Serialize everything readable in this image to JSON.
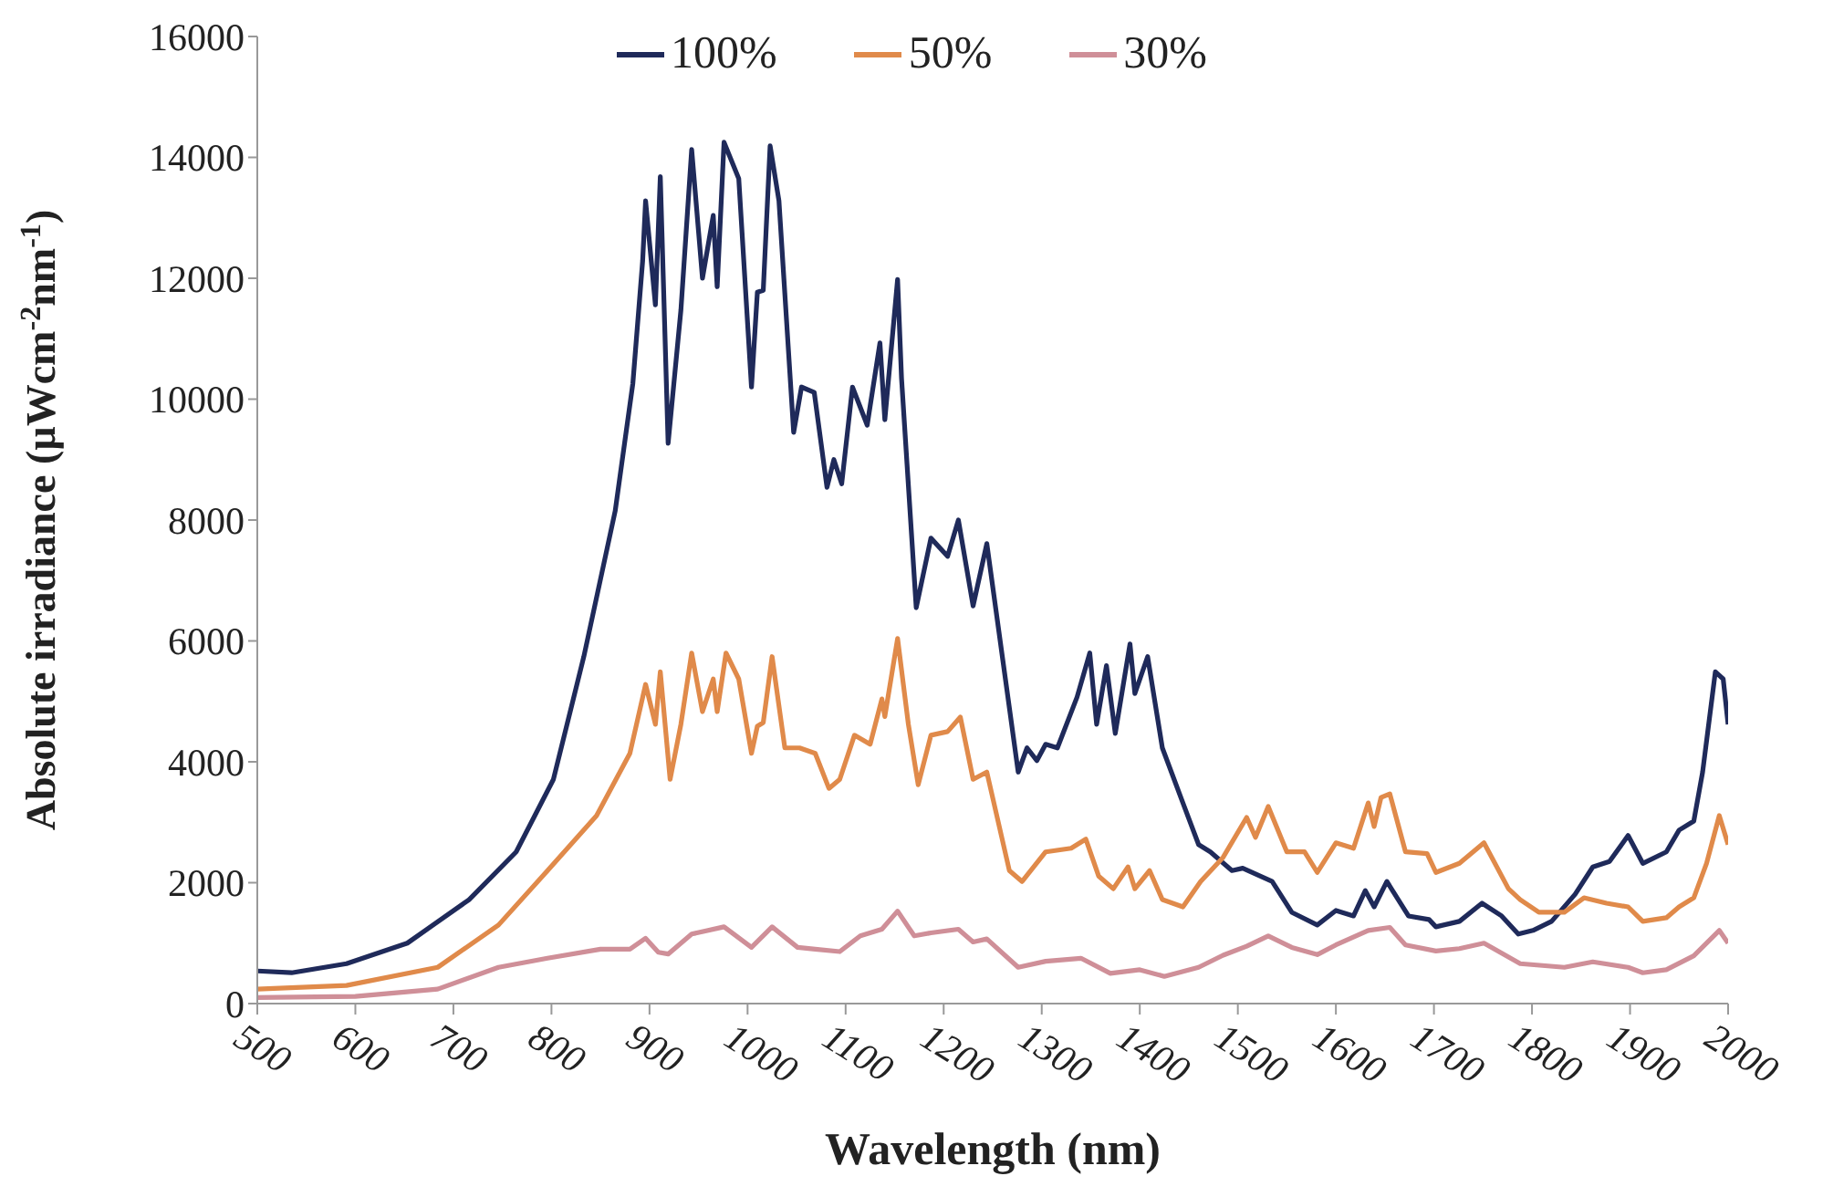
{
  "chart_data": {
    "type": "line",
    "xlabel": "Wavelength (nm)",
    "ylabel": "Absolute irradiance (µWcm$^{-2}$nm$^{-1}$)",
    "xlim": [
      500,
      2000
    ],
    "xticks": [
      500,
      600,
      700,
      800,
      900,
      1000,
      1100,
      1200,
      1300,
      1400,
      1500,
      1600,
      1700,
      1800,
      1900,
      2000
    ],
    "ylim": [
      0,
      16000
    ],
    "yticks": [
      0,
      2000,
      4000,
      6000,
      8000,
      10000,
      12000,
      14000,
      16000
    ],
    "grid": false,
    "legend": "top",
    "marker": "none",
    "line_style": "solid",
    "series": [
      {
        "name": "100%",
        "color": "#1f2a5a",
        "x": [
          500,
          535,
          591,
          653,
          716,
          764,
          802,
          833,
          865,
          883,
          893,
          896,
          906,
          911,
          919,
          932,
          943,
          954,
          965,
          969,
          976,
          991,
          1004,
          1010,
          1016,
          1023,
          1032,
          1047,
          1055,
          1068,
          1081,
          1088,
          1096,
          1107,
          1122,
          1135,
          1140,
          1153,
          1157,
          1172,
          1187,
          1204,
          1215,
          1230,
          1244,
          1276,
          1285,
          1295,
          1304,
          1316,
          1336,
          1349,
          1356,
          1366,
          1375,
          1390,
          1395,
          1408,
          1423,
          1444,
          1460,
          1472,
          1494,
          1505,
          1535,
          1555,
          1581,
          1600,
          1618,
          1630,
          1639,
          1652,
          1674,
          1695,
          1702,
          1726,
          1749,
          1769,
          1786,
          1801,
          1820,
          1844,
          1862,
          1879,
          1898,
          1913,
          1937,
          1950,
          1965,
          1974,
          1987,
          1995,
          2000
        ],
        "values": [
          540,
          510,
          660,
          1000,
          1720,
          2510,
          3710,
          5740,
          8150,
          10260,
          12290,
          13280,
          11560,
          13680,
          9270,
          11470,
          14130,
          12000,
          13040,
          11860,
          14250,
          13650,
          10200,
          11770,
          11800,
          14190,
          13280,
          9450,
          10200,
          10110,
          8540,
          9000,
          8600,
          10200,
          9570,
          10930,
          9660,
          11980,
          10350,
          6550,
          7700,
          7400,
          8000,
          6580,
          7610,
          3830,
          4230,
          4020,
          4290,
          4230,
          5070,
          5800,
          4620,
          5590,
          4470,
          5950,
          5130,
          5740,
          4230,
          3320,
          2630,
          2510,
          2200,
          2240,
          2020,
          1510,
          1300,
          1540,
          1450,
          1870,
          1600,
          2020,
          1450,
          1390,
          1270,
          1360,
          1660,
          1450,
          1150,
          1210,
          1360,
          1810,
          2260,
          2350,
          2780,
          2320,
          2510,
          2870,
          3020,
          3830,
          5490,
          5370,
          4620
        ]
      },
      {
        "name": "50%",
        "color": "#e08a4a",
        "x": [
          500,
          591,
          684,
          746,
          796,
          846,
          880,
          896,
          906,
          911,
          921,
          932,
          943,
          954,
          965,
          969,
          978,
          991,
          1004,
          1010,
          1016,
          1025,
          1038,
          1053,
          1069,
          1083,
          1094,
          1109,
          1125,
          1137,
          1140,
          1153,
          1164,
          1174,
          1187,
          1204,
          1217,
          1230,
          1244,
          1267,
          1280,
          1304,
          1330,
          1345,
          1358,
          1373,
          1388,
          1395,
          1410,
          1423,
          1444,
          1462,
          1485,
          1509,
          1518,
          1531,
          1550,
          1568,
          1581,
          1600,
          1618,
          1633,
          1639,
          1646,
          1655,
          1671,
          1693,
          1702,
          1726,
          1751,
          1776,
          1788,
          1807,
          1833,
          1853,
          1876,
          1898,
          1913,
          1937,
          1950,
          1965,
          1978,
          1991,
          2000
        ],
        "values": [
          240,
          300,
          600,
          1300,
          2200,
          3110,
          4140,
          5280,
          4620,
          5490,
          3710,
          4620,
          5800,
          4830,
          5370,
          4830,
          5800,
          5370,
          4140,
          4590,
          4650,
          5740,
          4230,
          4230,
          4140,
          3560,
          3710,
          4440,
          4290,
          5040,
          4750,
          6040,
          4620,
          3620,
          4440,
          4500,
          4740,
          3710,
          3830,
          2200,
          2020,
          2510,
          2570,
          2720,
          2110,
          1900,
          2260,
          1900,
          2200,
          1720,
          1600,
          2020,
          2420,
          3080,
          2750,
          3260,
          2510,
          2510,
          2170,
          2660,
          2570,
          3320,
          2930,
          3410,
          3470,
          2510,
          2480,
          2170,
          2320,
          2660,
          1900,
          1720,
          1510,
          1510,
          1750,
          1660,
          1600,
          1360,
          1420,
          1600,
          1750,
          2320,
          3110,
          2630
        ]
      },
      {
        "name": "30%",
        "color": "#cf8f98",
        "x": [
          500,
          600,
          684,
          746,
          796,
          850,
          880,
          896,
          909,
          919,
          943,
          976,
          1004,
          1025,
          1051,
          1069,
          1094,
          1115,
          1137,
          1153,
          1170,
          1187,
          1215,
          1230,
          1244,
          1276,
          1304,
          1340,
          1370,
          1400,
          1425,
          1460,
          1485,
          1509,
          1531,
          1555,
          1581,
          1600,
          1633,
          1655,
          1671,
          1702,
          1726,
          1751,
          1788,
          1833,
          1862,
          1898,
          1913,
          1937,
          1965,
          1991,
          2000
        ],
        "values": [
          100,
          120,
          240,
          600,
          750,
          900,
          900,
          1080,
          850,
          820,
          1150,
          1270,
          930,
          1270,
          930,
          900,
          860,
          1120,
          1230,
          1530,
          1120,
          1170,
          1230,
          1020,
          1070,
          600,
          700,
          750,
          500,
          560,
          450,
          600,
          800,
          950,
          1120,
          930,
          810,
          970,
          1210,
          1260,
          970,
          870,
          910,
          1000,
          660,
          600,
          690,
          600,
          510,
          560,
          790,
          1210,
          1000
        ]
      }
    ]
  }
}
